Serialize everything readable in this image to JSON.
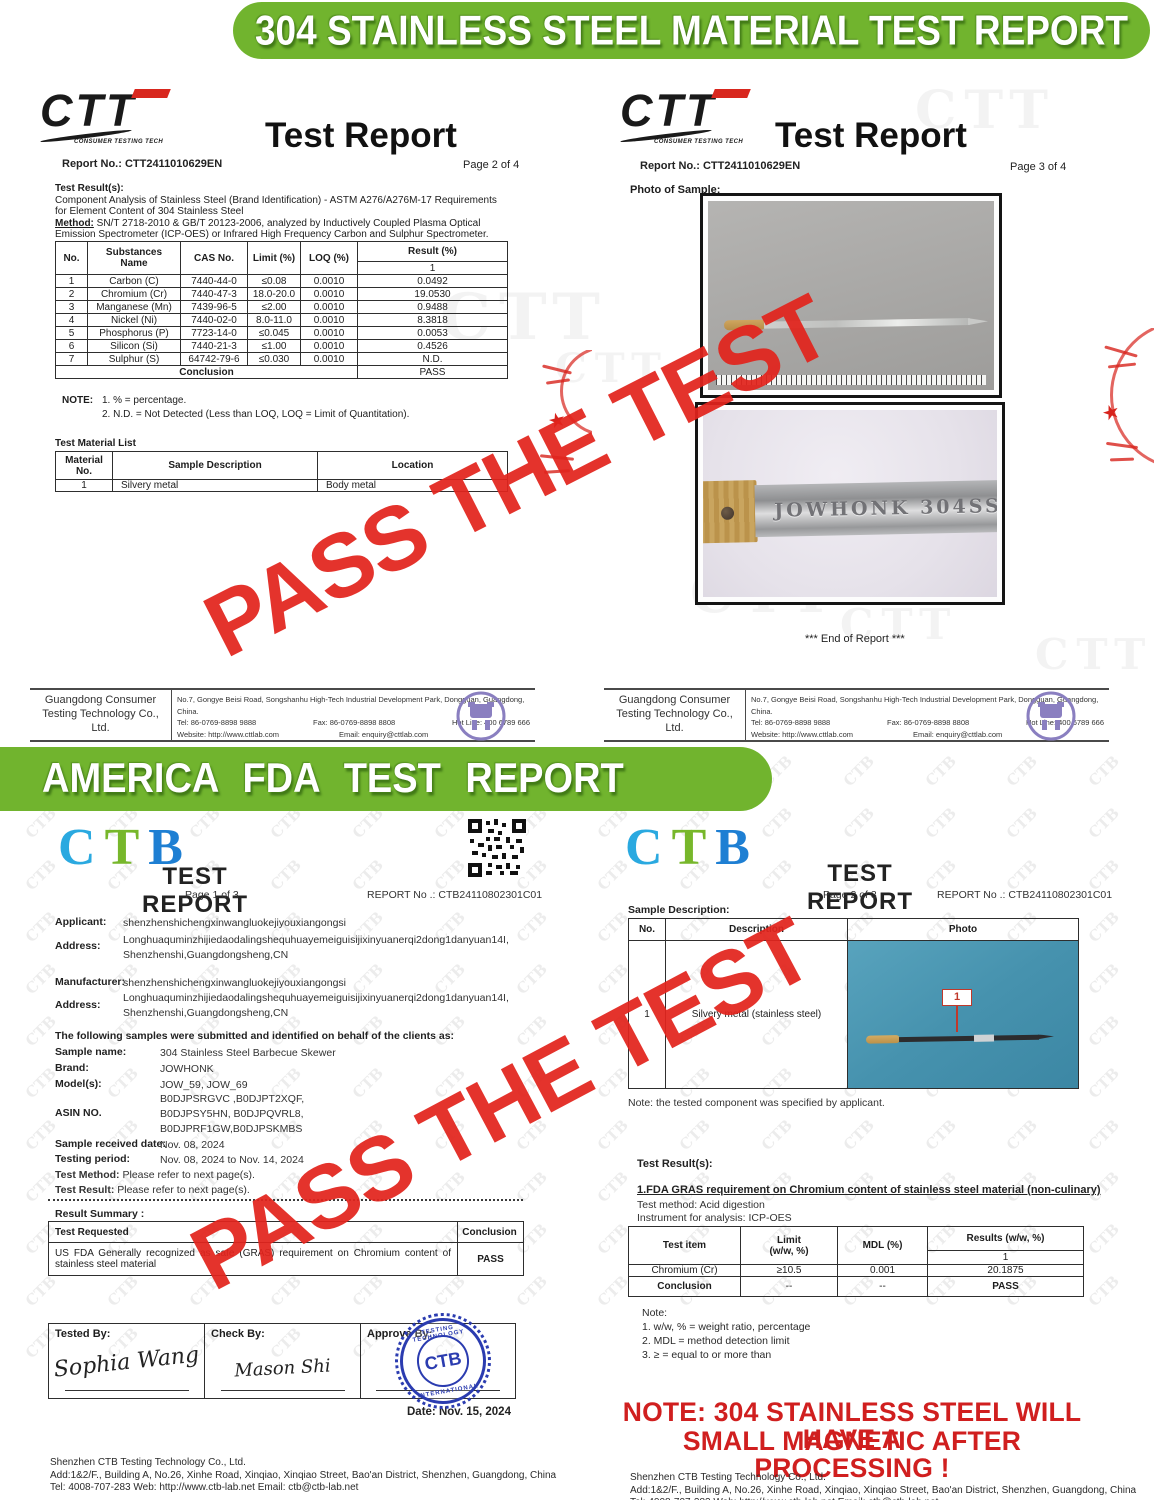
{
  "colors": {
    "banner_green": "#71b42e",
    "watermark_red": "#e2241d",
    "ctb_c_blue": "#2aa9e0",
    "ctb_t_green": "#77b72b",
    "ctb_b_blue": "#1e7fd3",
    "stamp_blue": "#2b3cb0",
    "note_red": "#d01f1f"
  },
  "banners": {
    "top": "304 STAINLESS STEEL MATERIAL TEST REPORT",
    "middle": "AMERICA FDA TEST REPORT"
  },
  "watermark": {
    "text": "PASS THE TEST",
    "pattern_ctb": "CTB",
    "pattern_ctt": "CTT",
    "star": "★"
  },
  "ctt": {
    "logo": {
      "text": "CTT",
      "tagline": "CONSUMER TESTING TECH"
    },
    "title": "Test Report",
    "report_no": "Report No.: CTT2411010629EN",
    "footer": {
      "company": "Guangdong Consumer\nTesting Technology Co., Ltd.",
      "address": "No.7, Gongye Beisi Road, Songshanhu High-Tech Industrial Development Park, Dongguan, Guangdong, China.",
      "tel": "Tel: 86-0769-8898 9888",
      "fax": "Fax: 86-0769-8898 8808",
      "hotline": "Hot Line: 400 6789 666",
      "website": "Website: http://www.cttlab.com",
      "email": "Email: enquiry@cttlab.com"
    },
    "page2": {
      "page": "Page 2 of 4",
      "section_title": "Test Result(s):",
      "description": "Component Analysis of Stainless Steel (Brand Identification) - ASTM A276/A276M-17 Requirements for Element Content of 304 Stainless Steel",
      "method_label": "Method:",
      "method_text": " SN/T 2718-2010 & GB/T 20123-2006, analyzed by Inductively Coupled Plasma Optical Emission Spectrometer (ICP-OES)  or Infrared High Frequency Carbon and Sulphur Spectrometer.",
      "table": {
        "h_no": "No.",
        "h_name": "Substances\nName",
        "h_cas": "CAS No.",
        "h_limit": "Limit (%)",
        "h_loq": "LOQ (%)",
        "h_result": "Result (%)",
        "h_result_sub": "1",
        "rows": [
          [
            "1",
            "Carbon (C)",
            "7440-44-0",
            "≤0.08",
            "0.0010",
            "0.0492"
          ],
          [
            "2",
            "Chromium (Cr)",
            "7440-47-3",
            "18.0-20.0",
            "0.0010",
            "19.0530"
          ],
          [
            "3",
            "Manganese (Mn)",
            "7439-96-5",
            "≤2.00",
            "0.0010",
            "0.9488"
          ],
          [
            "4",
            "Nickel (Ni)",
            "7440-02-0",
            "8.0-11.0",
            "0.0010",
            "8.3818"
          ],
          [
            "5",
            "Phosphorus (P)",
            "7723-14-0",
            "≤0.045",
            "0.0010",
            "0.0053"
          ],
          [
            "6",
            "Silicon (Si)",
            "7440-21-3",
            "≤1.00",
            "0.0010",
            "0.4526"
          ],
          [
            "7",
            "Sulphur (S)",
            "64742-79-6",
            "≤0.030",
            "0.0010",
            "N.D."
          ]
        ],
        "conclusion_label": "Conclusion",
        "conclusion_value": "PASS"
      },
      "note_label": "NOTE:",
      "note1": "1. % = percentage.",
      "note2": "2. N.D. = Not Detected (Less than LOQ, LOQ = Limit of Quantitation).",
      "material_title": "Test Material List",
      "material": {
        "h_no": "Material\nNo.",
        "h_desc": "Sample Description",
        "h_loc": "Location",
        "rows": [
          [
            "1",
            "Silvery metal",
            "Body metal"
          ]
        ]
      }
    },
    "page3": {
      "page": "Page 3 of 4",
      "photo_label": "Photo of Sample:",
      "blade_engraving": "JOWHONK 304SS",
      "end_of_report": "*** End of Report ***"
    }
  },
  "ctb": {
    "logo_c": "C",
    "logo_t": "T",
    "logo_b": "B",
    "title": "TEST REPORT",
    "report_no": "REPORT No .: CTB24110802301C01",
    "page1": {
      "page": "Page 1 of 3",
      "applicant_label": "Applicant:",
      "applicant": "shenzhenshichengxinwangluokejiyouxiangongsi",
      "address_label": "Address:",
      "address1": "Longhuaquminzhijiedaodalingshequhuayemeiguisijixinyuanerqi2dong1danyuan14I,",
      "address2": "Shenzhenshi,Guangdongsheng,CN",
      "manufacturer_label": "Manufacturer:",
      "manufacturer": "shenzhenshichengxinwangluokejiyouxiangongsi",
      "clients_line": "The following samples were submitted and identified on behalf of the clients as:",
      "sample_name_label": "Sample name:",
      "sample_name": "304 Stainless Steel Barbecue Skewer",
      "brand_label": "Brand:",
      "brand": "JOWHONK",
      "models_label": "Model(s):",
      "models": "JOW_59,  JOW_69",
      "asin_label": "ASIN NO.",
      "asin1": "B0DJPSRGVC ,B0DJPT2XQF,",
      "asin2": "B0DJPSY5HN, B0DJPQVRL8,",
      "asin3": "B0DJPRF1GW,B0DJPSKMBS",
      "received_label": "Sample received date:",
      "received": "Nov. 08, 2024",
      "period_label": "Testing period:",
      "period": "Nov. 08, 2024 to Nov. 14, 2024",
      "test_method_label": "Test Method:",
      "test_method": " Please refer to next page(s).",
      "test_result_label": "Test Result:",
      "test_result": " Please refer to next page(s).",
      "summary_title": "Result Summary :",
      "summary_h1": "Test Requested",
      "summary_h2": "Conclusion",
      "summary_request": "US FDA Generally recognized as safe (GRAS) requirement on Chromium content of stainless steel material",
      "summary_conclusion": "PASS",
      "tested_label": "Tested By:",
      "tested_sig": "Sophia Wang",
      "check_label": "Check By:",
      "check_sig": "Mason Shi",
      "approve_label": "Approve By:",
      "stamp_text": "CTB",
      "stamp_ring_top": "TESTING TECHNOLOGY",
      "stamp_ring_bottom": "INTERNATIONAL",
      "date": "Date: Nov. 15, 2024"
    },
    "page2": {
      "page": "Page 2 of 3",
      "sample_desc_label": "Sample Description:",
      "t_no": "No.",
      "t_desc": "Description",
      "t_photo": "Photo",
      "row_no": "1",
      "row_desc": "Silvery metal (stainless steel)",
      "photo_tag": "1",
      "note": "Note: the tested component was specified by applicant.",
      "results_label": "Test Result(s):",
      "heading": "1.FDA GRAS requirement on Chromium content of stainless steel material (non-culinary)",
      "method": "Test method: Acid digestion",
      "instrument": "Instrument for analysis: ICP-OES",
      "t2_item": "Test item",
      "t2_limit": "Limit\n(w/w, %)",
      "t2_mdl": "MDL (%)",
      "t2_results": "Results (w/w, %)",
      "t2_results_sub": "1",
      "t2_rows": [
        [
          "Chromium (Cr)",
          "≥10.5",
          "0.001",
          "20.1875"
        ]
      ],
      "t2_conclusion": [
        "Conclusion",
        "--",
        "--",
        "PASS"
      ],
      "note_title": "Note:",
      "note1": "1.   w/w, % = weight ratio, percentage",
      "note2": "2.   MDL = method detection limit",
      "note3": "3.   ≥ = equal to or more than",
      "red_note1": "NOTE: 304 STAINLESS STEEL WILL HAVE A",
      "red_note2": "SMALL MAGNETIC AFTER PROCESSING !"
    },
    "footer1": "Shenzhen CTB Testing Technology Co., Ltd.",
    "footer2": "Add:1&2/F., Building A, No.26, Xinhe Road, Xinqiao, Xinqiao Street, Bao'an District, Shenzhen, Guangdong, China",
    "footer3": "Tel: 4008-707-283    Web: http://www.ctb-lab.net          Email: ctb@ctb-lab.net"
  }
}
